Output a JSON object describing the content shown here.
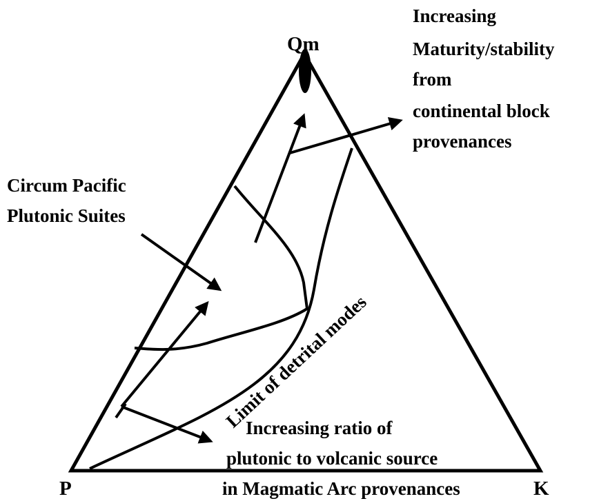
{
  "vertices": {
    "top": "Qm",
    "left": "P",
    "right": "K"
  },
  "annotations": {
    "maturity": [
      "Increasing",
      "Maturity/stability",
      "from",
      "continental block",
      "provenances"
    ],
    "plutonic_suites": [
      "Circum Pacific",
      "Plutonic Suites"
    ],
    "limit": "Limit of detrital modes",
    "magmatic_arc": [
      "Increasing ratio of",
      "plutonic to volcanic source",
      "in Magmatic Arc provenances"
    ]
  }
}
